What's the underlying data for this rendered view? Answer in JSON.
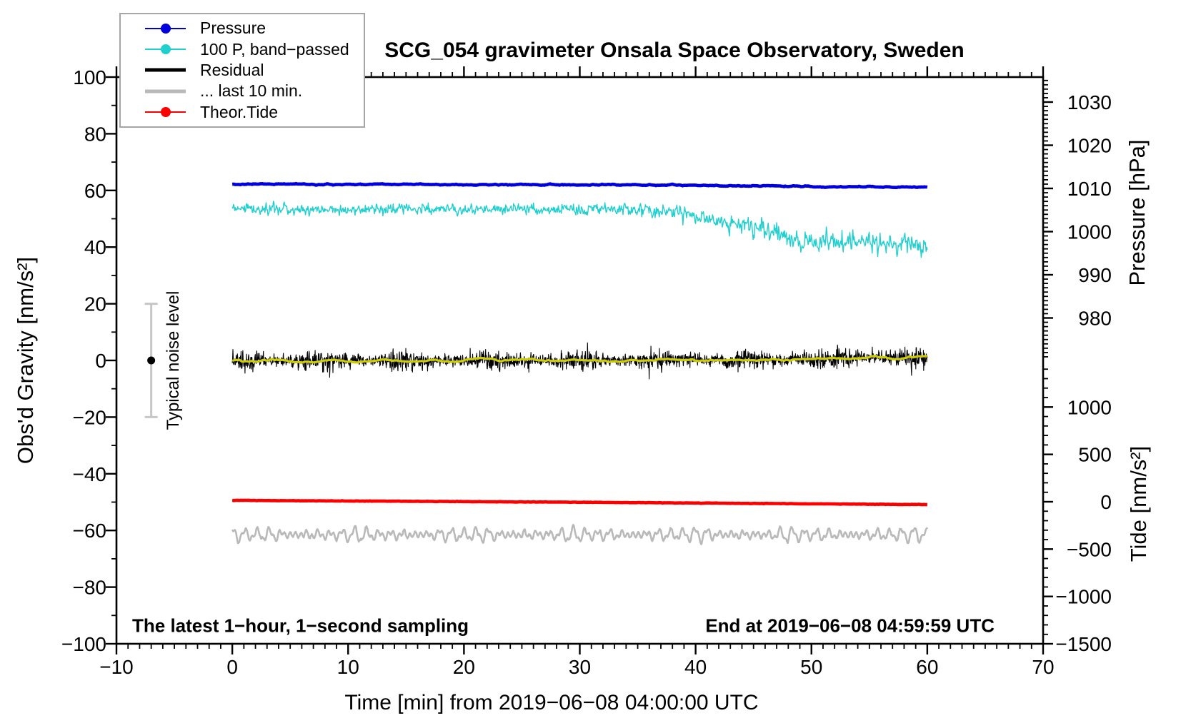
{
  "title": "SCG_054 gravimeter Onsala Space Observatory, Sweden",
  "annotations": {
    "bottom_left": "The latest 1−hour, 1−second sampling",
    "bottom_right": "End at 2019−06−08 04:59:59 UTC"
  },
  "legend": {
    "items": [
      {
        "key": "pressure",
        "label": "Pressure",
        "color": "#0000dd",
        "marker": "circle",
        "line_width": 2
      },
      {
        "key": "band-passed",
        "label": "100 P, band−passed",
        "color": "#22cfcf",
        "marker": "circle",
        "line_width": 2
      },
      {
        "key": "residual",
        "label": "Residual",
        "color": "#000000",
        "marker": "none",
        "line_width": 5
      },
      {
        "key": "last-10-min",
        "label": "... last 10 min.",
        "color": "#b9b9b9",
        "marker": "none",
        "line_width": 5
      },
      {
        "key": "theor-tide",
        "label": "Theor.Tide",
        "color": "#fa0000",
        "marker": "circle",
        "line_width": 2
      }
    ]
  },
  "chart_data": {
    "type": "line",
    "title": "SCG_054 gravimeter Onsala Space Observatory, Sweden",
    "xlabel": "Time [min] from 2019−06−08 04:00:00 UTC",
    "axes": {
      "x": {
        "label": "Time [min] from 2019−06−08 04:00:00 UTC",
        "min": -10,
        "max": 70,
        "major_tick": 10,
        "minor_tick": 1
      },
      "y_left": {
        "label": "Obs'd Gravity [nm/s²]",
        "min": -100,
        "max": 100,
        "major_tick": 20,
        "minor_tick": 10
      },
      "y_right_pressure": {
        "label": "Pressure [hPa]",
        "tick_labels": [
          1030,
          1020,
          1010,
          1000,
          990,
          980
        ],
        "minor_tick": 1,
        "hpa_per_div": 10
      },
      "y_right_tide": {
        "label": "Tide [nm/s²]",
        "tick_labels": [
          1000,
          500,
          0,
          -500,
          -1000,
          -1500
        ],
        "minor_tick": 100
      }
    },
    "grid": false,
    "legend_position": "top-left",
    "series": [
      {
        "key": "pressure",
        "name": "Pressure",
        "axis": "pressure",
        "color": "#0000dd",
        "width": 4.6,
        "t": [
          0,
          5,
          10,
          15,
          20,
          25,
          30,
          33,
          36,
          40,
          44,
          48,
          52,
          56,
          60
        ],
        "v": [
          1011.0,
          1011.0,
          1010.95,
          1010.95,
          1010.9,
          1010.9,
          1010.9,
          1010.9,
          1010.85,
          1010.75,
          1010.6,
          1010.5,
          1010.4,
          1010.35,
          1010.3
        ],
        "noise": 0.04
      },
      {
        "key": "band-passed",
        "name": "100 P, band−passed",
        "axis": "gravity",
        "color": "#22cfcf",
        "width": 1.4,
        "t": [
          0,
          4,
          8,
          12,
          16,
          20,
          24,
          28,
          32,
          35,
          38,
          40,
          42,
          44,
          46,
          48,
          50,
          52,
          54,
          56,
          58,
          60
        ],
        "v": [
          53.8,
          53.4,
          53.2,
          53.7,
          53.4,
          53.3,
          53.6,
          53.2,
          53.4,
          53.1,
          52.2,
          51.2,
          49.8,
          47.8,
          45.5,
          43.2,
          42.0,
          41.4,
          41.8,
          40.6,
          41.2,
          40.3
        ],
        "noise_t": [
          0,
          35,
          42,
          46,
          60
        ],
        "noise_a": [
          0.85,
          0.95,
          1.3,
          1.7,
          1.7
        ]
      },
      {
        "key": "residual",
        "name": "Residual",
        "axis": "gravity",
        "color": "#000000",
        "width": 1.1,
        "t": [
          0,
          10,
          20,
          30,
          40,
          45,
          50,
          55,
          60
        ],
        "v": [
          -0.2,
          -0.1,
          -0.1,
          0.0,
          0.1,
          0.2,
          0.5,
          0.9,
          1.2
        ],
        "noise": 1.35
      },
      {
        "key": "residual-smooth",
        "name": "Residual (smoothed)",
        "axis": "gravity",
        "color": "#cccc00",
        "width": 3.2,
        "t": [
          0,
          10,
          20,
          30,
          40,
          45,
          50,
          55,
          60
        ],
        "v": [
          -0.2,
          -0.1,
          -0.1,
          0.0,
          0.1,
          0.2,
          0.5,
          0.9,
          1.3
        ],
        "noise": 0.25
      },
      {
        "key": "theor-tide",
        "name": "Theor.Tide",
        "axis": "tide",
        "color": "#fa0000",
        "width": 4.6,
        "t": [
          0,
          30,
          60
        ],
        "v": [
          15,
          -5,
          -30
        ],
        "noise": 1.0
      },
      {
        "key": "last-10-min",
        "name": "... last 10 min.",
        "axis": "gravity",
        "color": "#b9b9b9",
        "width": 2.6,
        "t": [
          0,
          60
        ],
        "v": [
          -61.5,
          -61.5
        ],
        "osc_amp": 2.2,
        "osc_period_min": 1.05
      }
    ],
    "noise_marker": {
      "label": "Typical noise level",
      "x_min": -7,
      "value": 0,
      "half_range": 20,
      "bar_color": "#c6c6c6",
      "dot_color": "#000000"
    }
  }
}
